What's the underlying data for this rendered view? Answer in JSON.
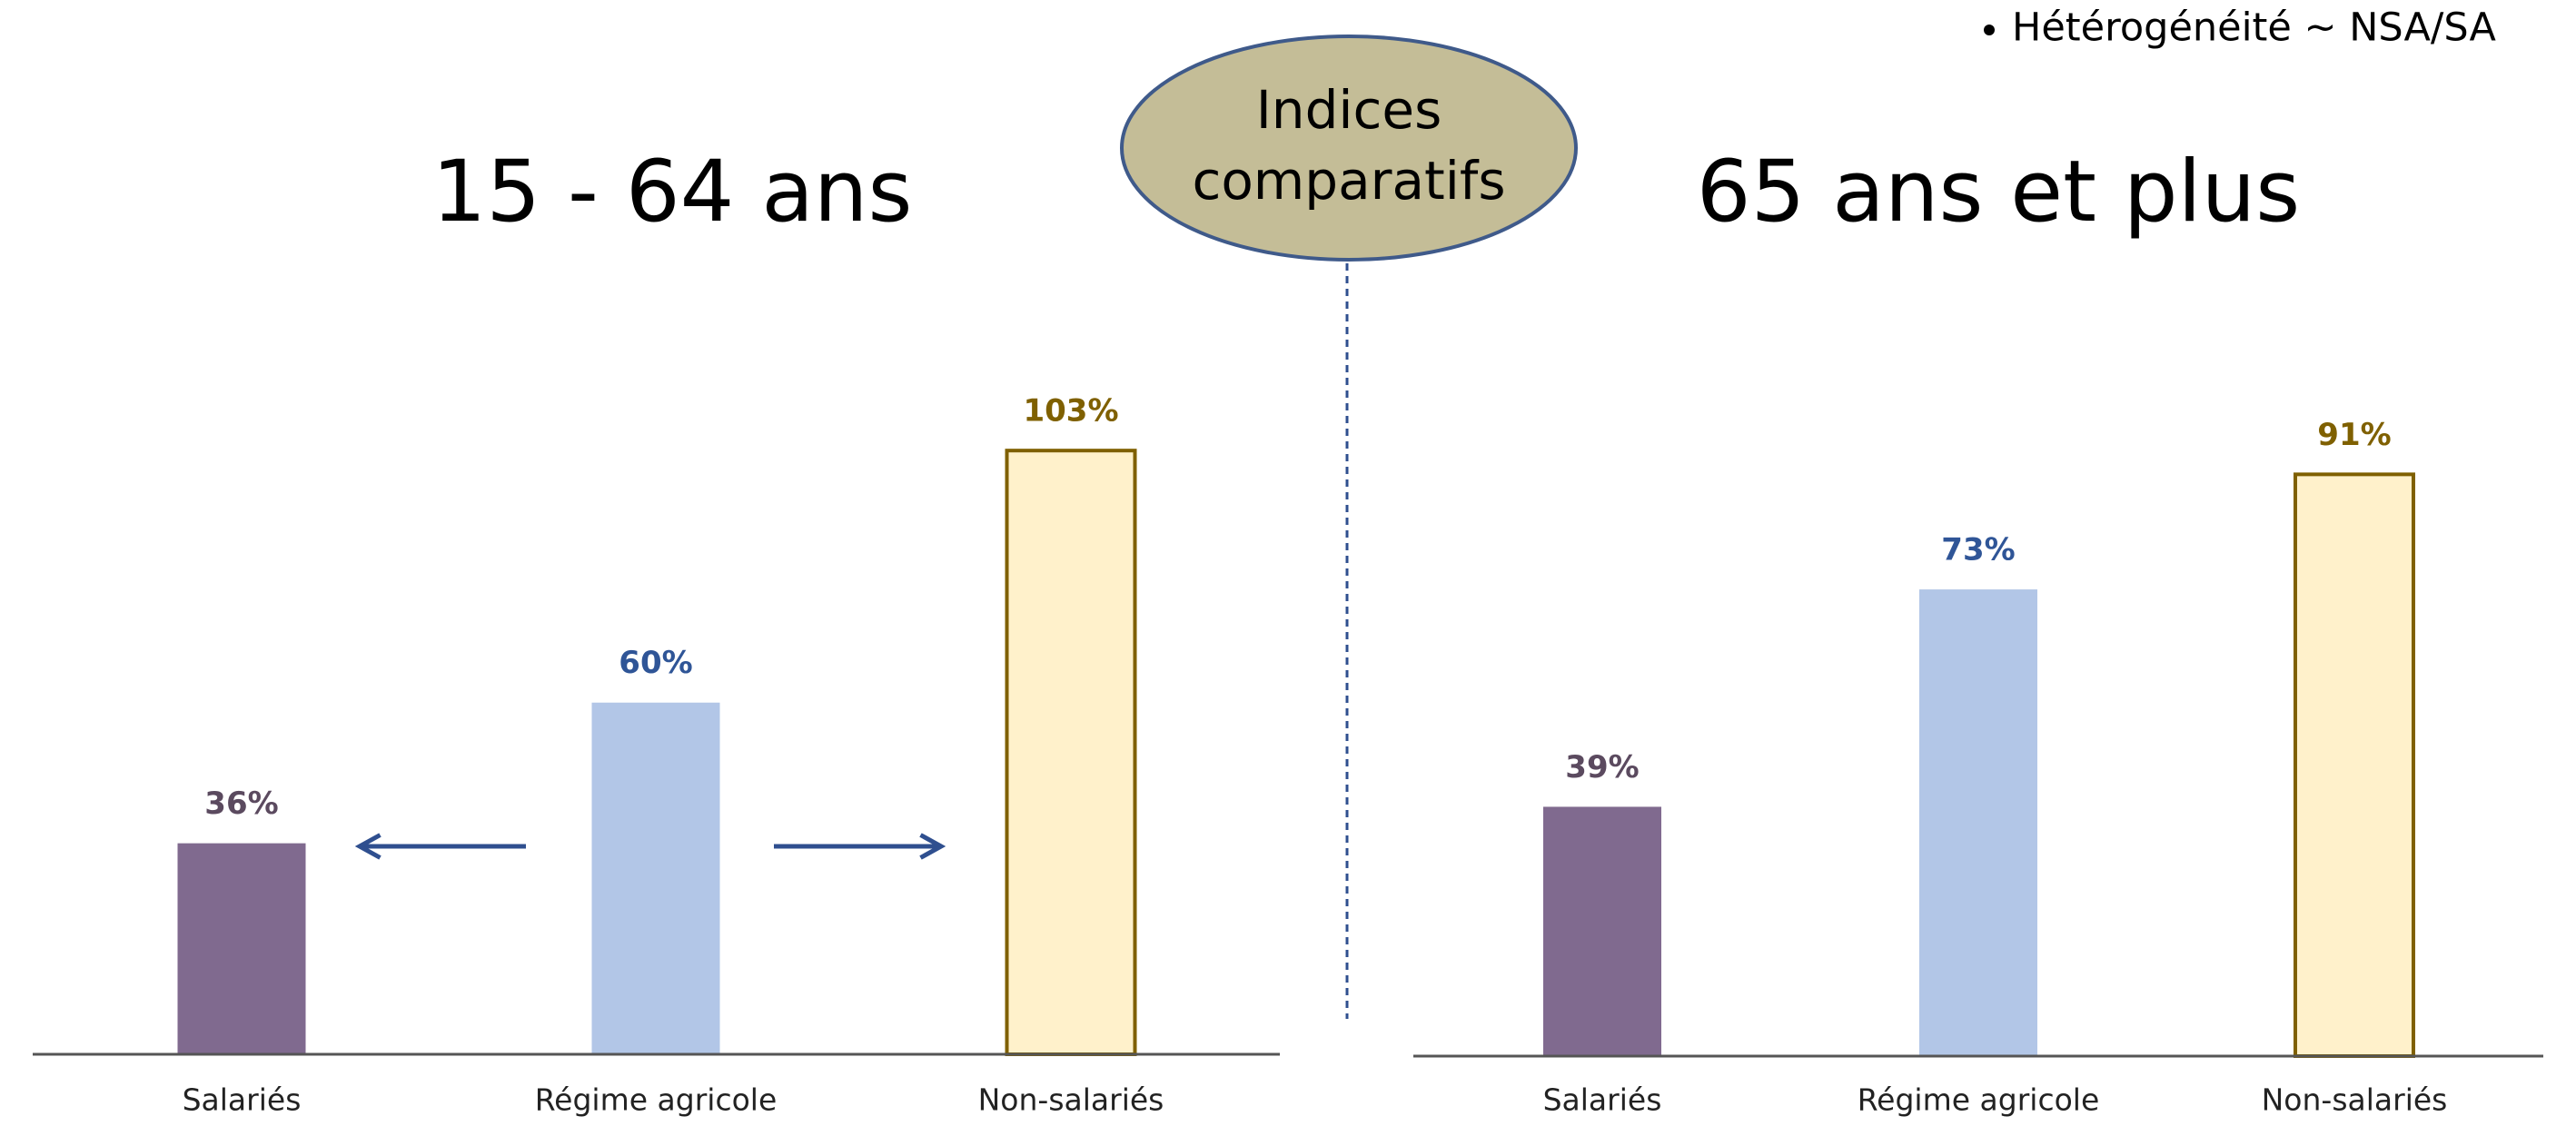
{
  "header": {
    "note": "Hétérogénéité ~ NSA/SA",
    "badge": [
      "Indices",
      "comparatifs"
    ]
  },
  "chart_data": [
    {
      "type": "bar",
      "title": "15 - 64 ans",
      "categories": [
        "Salariés",
        "Régime agricole",
        "Non-salariés"
      ],
      "values": [
        36,
        60,
        103
      ],
      "value_labels": [
        "36%",
        "60%",
        "103%"
      ],
      "colors": [
        "#806a8f",
        "#b2c6e7",
        "#fff1cb"
      ],
      "edgecolors": [
        "none",
        "none",
        "#7f6000"
      ],
      "label_colors": [
        "#5b4a5f",
        "#2f5597",
        "#7f6000"
      ],
      "ylim": [
        0,
        110
      ]
    },
    {
      "type": "bar",
      "title": "65 ans et plus",
      "categories": [
        "Salariés",
        "Régime agricole",
        "Non-salariés"
      ],
      "values": [
        39,
        73,
        91
      ],
      "value_labels": [
        "39%",
        "73%",
        "91%"
      ],
      "colors": [
        "#806a8f",
        "#b2c6e7",
        "#fff1cb"
      ],
      "edgecolors": [
        "none",
        "none",
        "#7f6000"
      ],
      "label_colors": [
        "#5b4a5f",
        "#2f5597",
        "#7f6000"
      ],
      "ylim": [
        0,
        100
      ]
    }
  ]
}
